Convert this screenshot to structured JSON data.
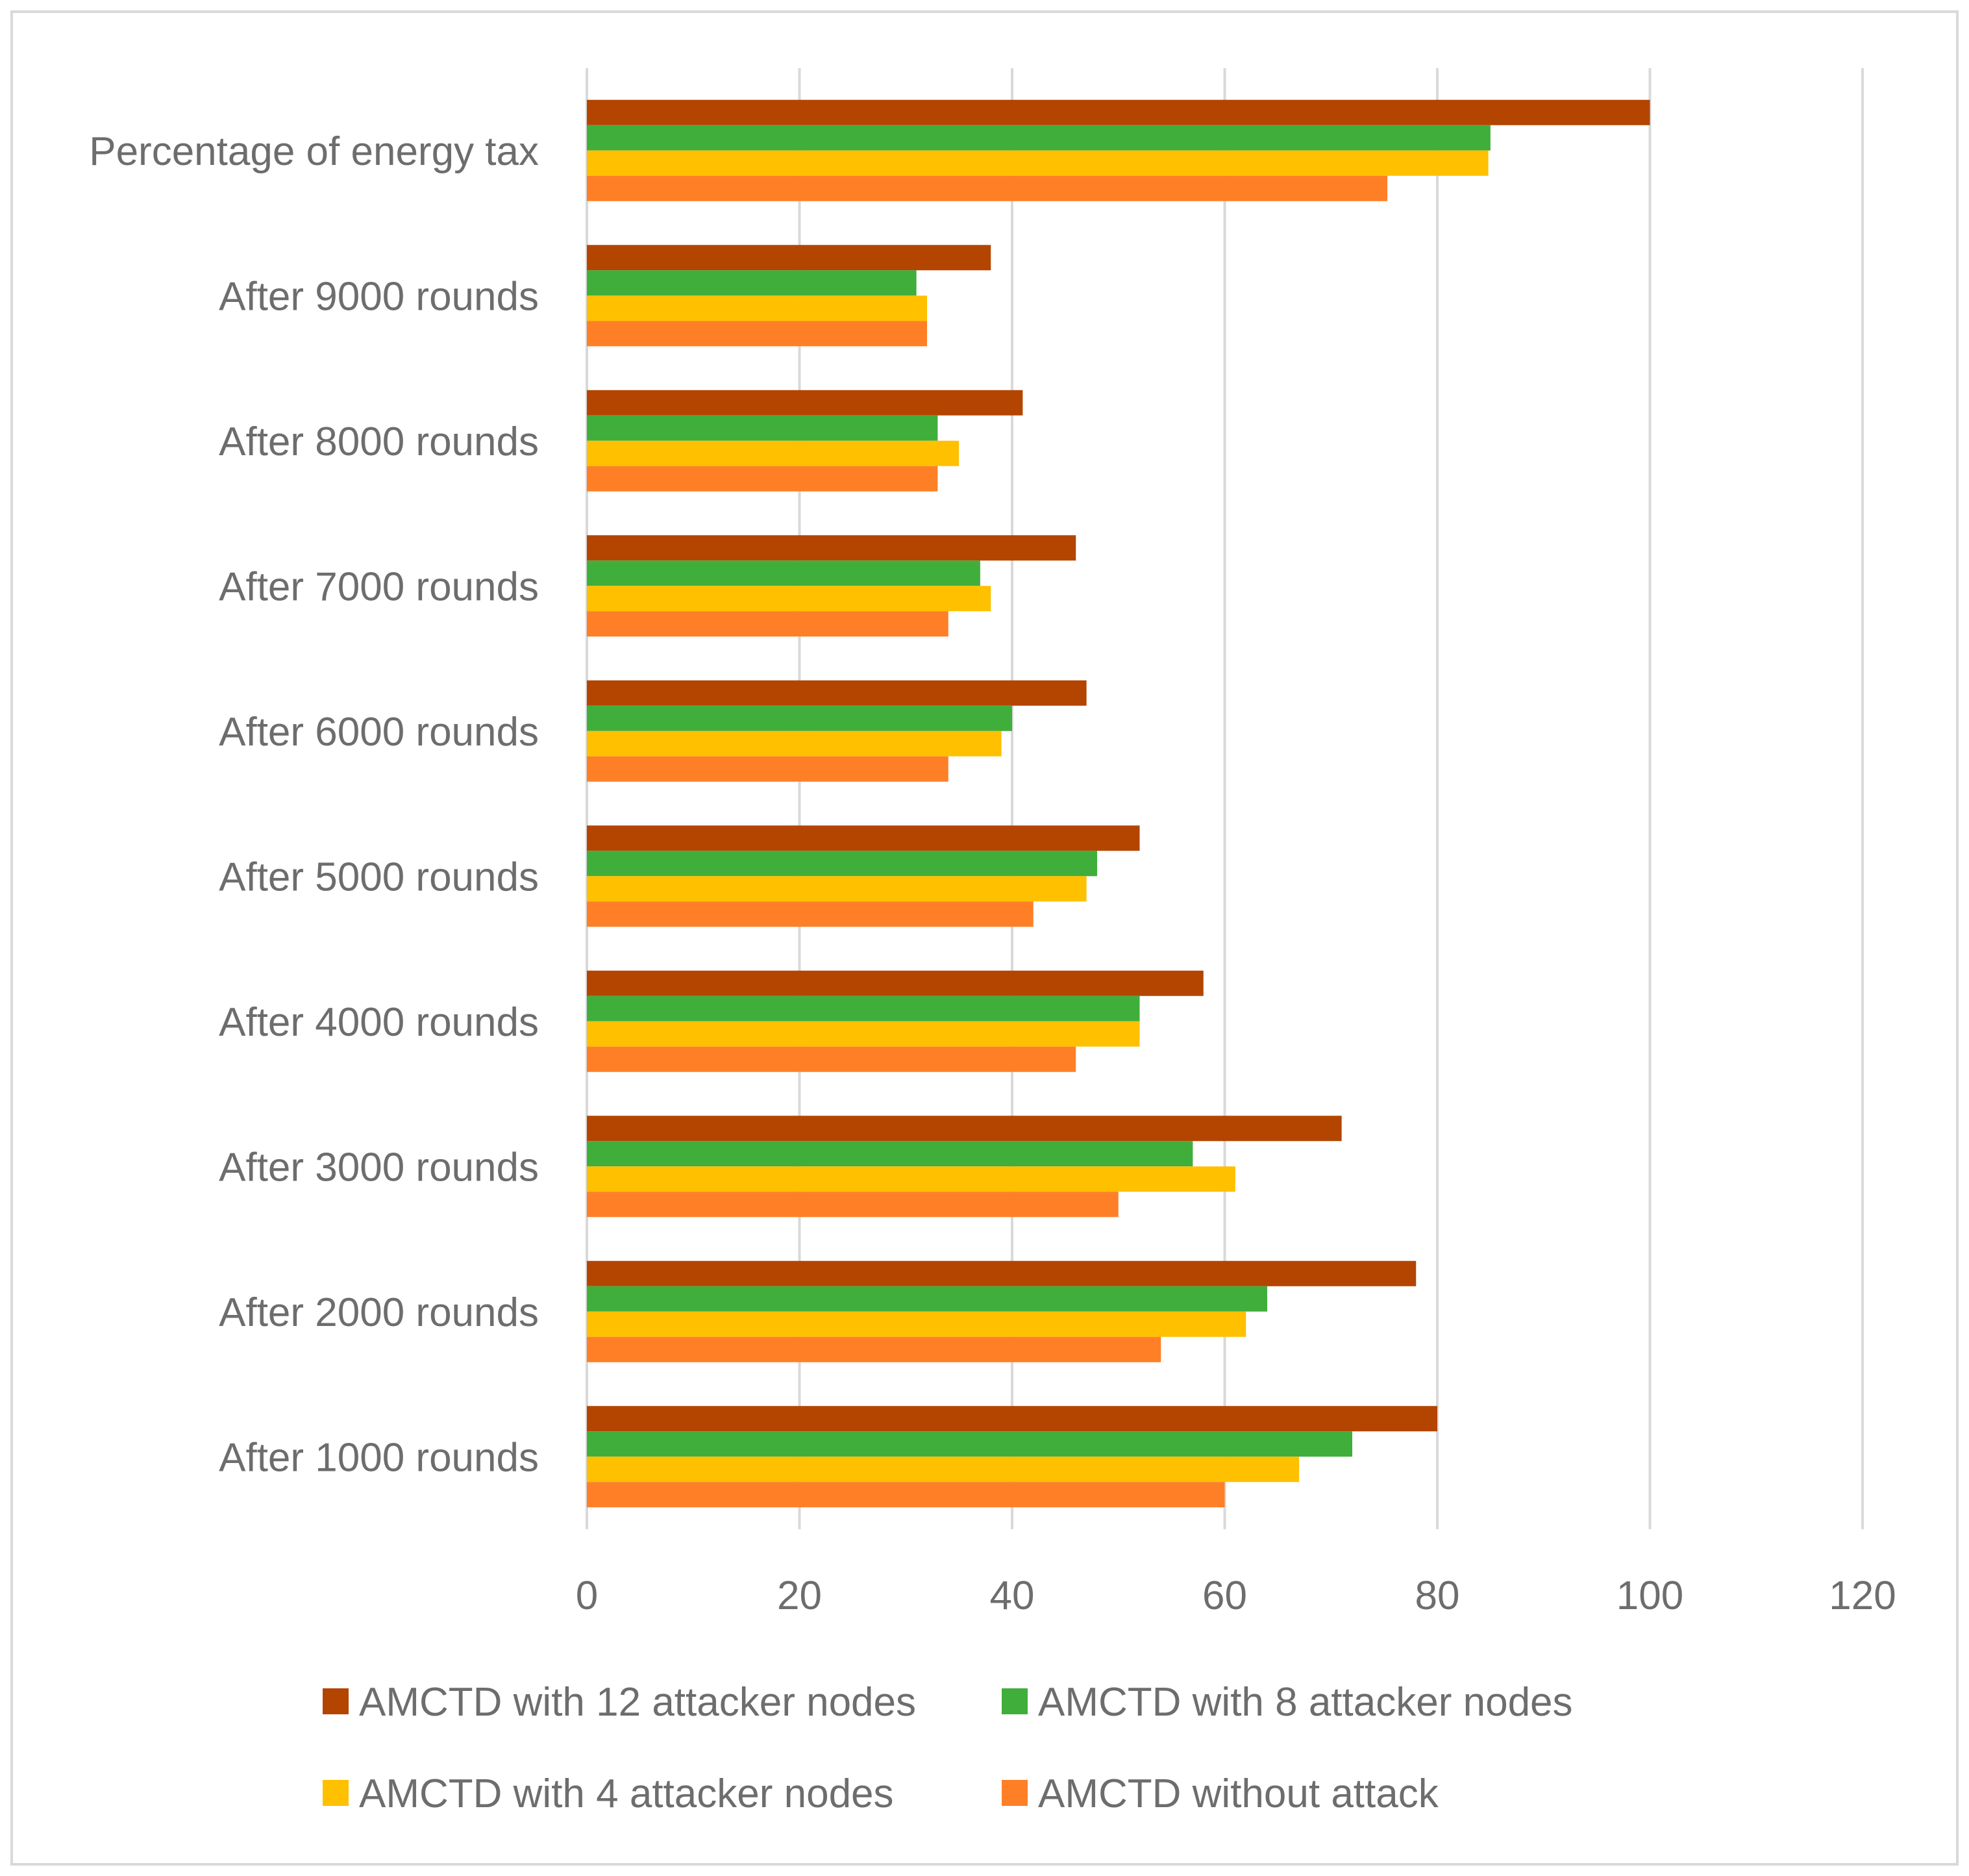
{
  "chart_data": {
    "type": "bar",
    "orientation": "horizontal",
    "title": "",
    "xlabel": "",
    "ylabel": "",
    "xlim": [
      0,
      120
    ],
    "xticks": [
      0,
      20,
      40,
      60,
      80,
      100,
      120
    ],
    "grid": true,
    "legend_position": "bottom",
    "categories": [
      "After 1000 rounds",
      "After 2000 rounds",
      "After 3000 rounds",
      "After 4000 rounds",
      "After 5000 rounds",
      "After 6000 rounds",
      "After 7000 rounds",
      "After 8000 rounds",
      "After 9000 rounds",
      "Percentage of energy tax"
    ],
    "series": [
      {
        "name": "AMCTD with 12 attacker  nodes",
        "color": "#b34500",
        "values": [
          80,
          78,
          71,
          58,
          52,
          47,
          46,
          41,
          38,
          100
        ]
      },
      {
        "name": "AMCTD with 8 attacker  nodes",
        "color": "#40ae3b",
        "values": [
          72,
          64,
          57,
          52,
          48,
          40,
          37,
          33,
          31,
          85
        ]
      },
      {
        "name": "AMCTD with 4 attacker  nodes",
        "color": "#ffc000",
        "values": [
          67,
          62,
          61,
          52,
          47,
          39,
          38,
          35,
          32,
          84.8
        ]
      },
      {
        "name": "AMCTD without attack",
        "color": "#ff7f27",
        "values": [
          60,
          54,
          50,
          46,
          42,
          34,
          34,
          33,
          32,
          75.3
        ]
      }
    ]
  }
}
